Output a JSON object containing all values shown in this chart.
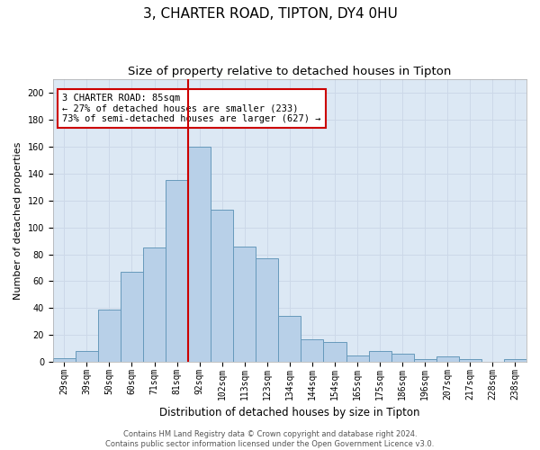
{
  "title_line1": "3, CHARTER ROAD, TIPTON, DY4 0HU",
  "title_line2": "Size of property relative to detached houses in Tipton",
  "xlabel": "Distribution of detached houses by size in Tipton",
  "ylabel": "Number of detached properties",
  "categories": [
    "29sqm",
    "39sqm",
    "50sqm",
    "60sqm",
    "71sqm",
    "81sqm",
    "92sqm",
    "102sqm",
    "113sqm",
    "123sqm",
    "134sqm",
    "144sqm",
    "154sqm",
    "165sqm",
    "175sqm",
    "186sqm",
    "196sqm",
    "207sqm",
    "217sqm",
    "228sqm",
    "238sqm"
  ],
  "values": [
    3,
    8,
    39,
    67,
    85,
    135,
    160,
    113,
    86,
    77,
    34,
    17,
    15,
    5,
    8,
    6,
    2,
    4,
    2,
    0,
    2
  ],
  "bar_color": "#b8d0e8",
  "bar_edge_color": "#6699bb",
  "annotation_line1": "3 CHARTER ROAD: 85sqm",
  "annotation_line2": "← 27% of detached houses are smaller (233)",
  "annotation_line3": "73% of semi-detached houses are larger (627) →",
  "annotation_box_color": "#cc0000",
  "vline_color": "#cc0000",
  "vline_x": 5.5,
  "ylim": [
    0,
    210
  ],
  "yticks": [
    0,
    20,
    40,
    60,
    80,
    100,
    120,
    140,
    160,
    180,
    200
  ],
  "grid_color": "#ccd8e8",
  "bg_color": "#dce8f4",
  "footer_text": "Contains HM Land Registry data © Crown copyright and database right 2024.\nContains public sector information licensed under the Open Government Licence v3.0.",
  "title_fontsize": 11,
  "subtitle_fontsize": 9.5,
  "ylabel_fontsize": 8,
  "xlabel_fontsize": 8.5,
  "tick_fontsize": 7,
  "annotation_fontsize": 7.5,
  "footer_fontsize": 6
}
